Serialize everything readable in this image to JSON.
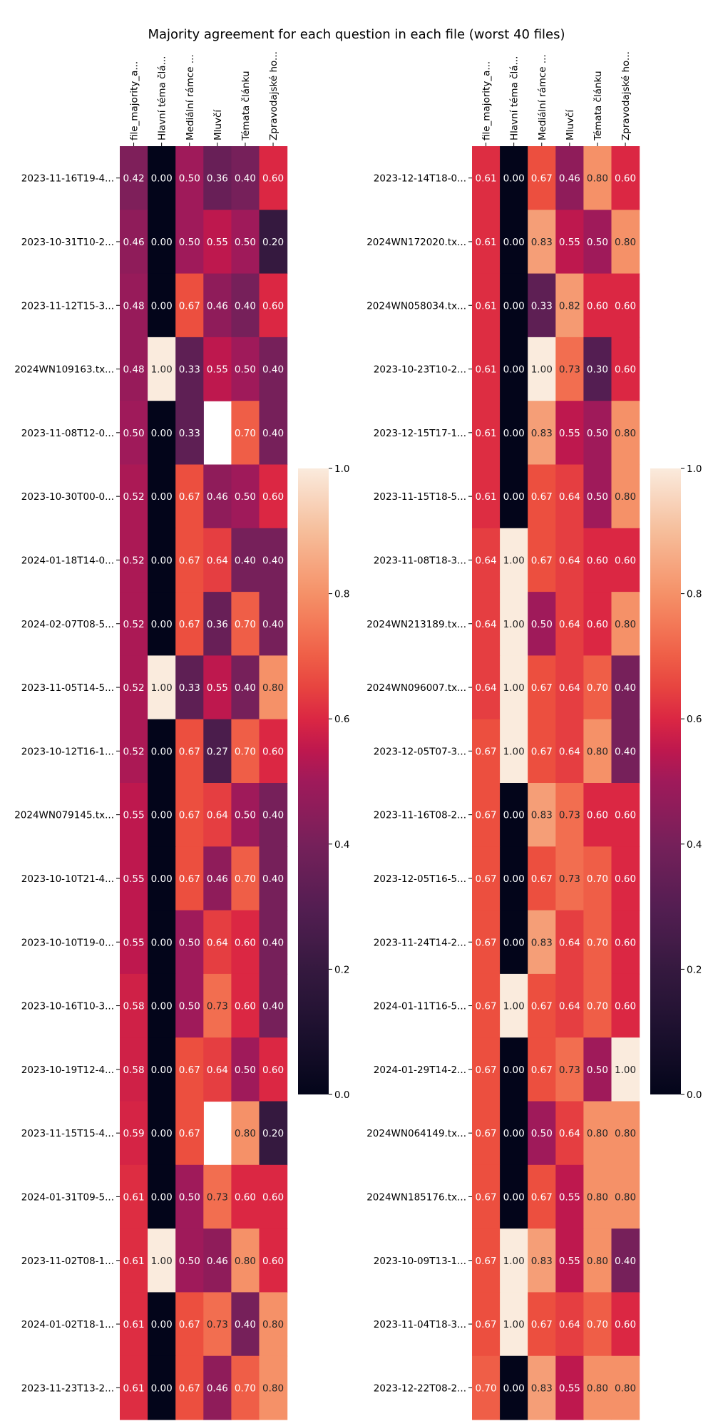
{
  "title": "Majority agreement for each question in each file (worst 40 files)",
  "colorbar_ticks": [
    "0.0",
    "0.2",
    "0.4",
    "0.6",
    "0.8",
    "1.0"
  ],
  "chart_data": [
    {
      "type": "heatmap",
      "columns": [
        "file_majority_a...",
        "Hlavní téma člá...",
        "Mediální rámce ...",
        "Mluvčí",
        "Témata článku",
        "Zpravodajské ho..."
      ],
      "rows": [
        "2023-11-16T19-4...",
        "2023-10-31T10-2...",
        "2023-11-12T15-3...",
        "2024WN109163.tx...",
        "2023-11-08T12-0...",
        "2023-10-30T00-0...",
        "2024-01-18T14-0...",
        "2024-02-07T08-5...",
        "2023-11-05T14-5...",
        "2023-10-12T16-1...",
        "2024WN079145.tx...",
        "2023-10-10T21-4...",
        "2023-10-10T19-0...",
        "2023-10-16T10-3...",
        "2023-10-19T12-4...",
        "2023-11-15T15-4...",
        "2024-01-31T09-5...",
        "2023-11-02T08-1...",
        "2024-01-02T18-1...",
        "2023-11-23T13-2..."
      ],
      "values": [
        [
          0.42,
          0.0,
          0.5,
          0.36,
          0.4,
          0.6
        ],
        [
          0.46,
          0.0,
          0.5,
          0.55,
          0.5,
          0.2
        ],
        [
          0.48,
          0.0,
          0.67,
          0.46,
          0.4,
          0.6
        ],
        [
          0.48,
          1.0,
          0.33,
          0.55,
          0.5,
          0.4
        ],
        [
          0.5,
          0.0,
          0.33,
          null,
          0.7,
          0.4
        ],
        [
          0.52,
          0.0,
          0.67,
          0.46,
          0.5,
          0.6
        ],
        [
          0.52,
          0.0,
          0.67,
          0.64,
          0.4,
          0.4
        ],
        [
          0.52,
          0.0,
          0.67,
          0.36,
          0.7,
          0.4
        ],
        [
          0.52,
          1.0,
          0.33,
          0.55,
          0.4,
          0.8
        ],
        [
          0.52,
          0.0,
          0.67,
          0.27,
          0.7,
          0.6
        ],
        [
          0.55,
          0.0,
          0.67,
          0.64,
          0.5,
          0.4
        ],
        [
          0.55,
          0.0,
          0.67,
          0.46,
          0.7,
          0.4
        ],
        [
          0.55,
          0.0,
          0.5,
          0.64,
          0.6,
          0.4
        ],
        [
          0.58,
          0.0,
          0.5,
          0.73,
          0.6,
          0.4
        ],
        [
          0.58,
          0.0,
          0.67,
          0.64,
          0.5,
          0.6
        ],
        [
          0.59,
          0.0,
          0.67,
          null,
          0.8,
          0.2
        ],
        [
          0.61,
          0.0,
          0.5,
          0.73,
          0.6,
          0.6
        ],
        [
          0.61,
          1.0,
          0.5,
          0.46,
          0.8,
          0.6
        ],
        [
          0.61,
          0.0,
          0.67,
          0.73,
          0.4,
          0.8
        ],
        [
          0.61,
          0.0,
          0.67,
          0.46,
          0.7,
          0.8
        ]
      ],
      "vmin": 0.0,
      "vmax": 1.0,
      "colormap": "rocket"
    },
    {
      "type": "heatmap",
      "columns": [
        "file_majority_a...",
        "Hlavní téma člá...",
        "Mediální rámce ...",
        "Mluvčí",
        "Témata článku",
        "Zpravodajské ho..."
      ],
      "rows": [
        "2023-12-14T18-0...",
        "2024WN172020.tx...",
        "2024WN058034.tx...",
        "2023-10-23T10-2...",
        "2023-12-15T17-1...",
        "2023-11-15T18-5...",
        "2023-11-08T18-3...",
        "2024WN213189.tx...",
        "2024WN096007.tx...",
        "2023-12-05T07-3...",
        "2023-11-16T08-2...",
        "2023-12-05T16-5...",
        "2023-11-24T14-2...",
        "2024-01-11T16-5...",
        "2024-01-29T14-2...",
        "2024WN064149.tx...",
        "2024WN185176.tx...",
        "2023-10-09T13-1...",
        "2023-11-04T18-3...",
        "2023-12-22T08-2..."
      ],
      "values": [
        [
          0.61,
          0.0,
          0.67,
          0.46,
          0.8,
          0.6
        ],
        [
          0.61,
          0.0,
          0.83,
          0.55,
          0.5,
          0.8
        ],
        [
          0.61,
          0.0,
          0.33,
          0.82,
          0.6,
          0.6
        ],
        [
          0.61,
          0.0,
          1.0,
          0.73,
          0.3,
          0.6
        ],
        [
          0.61,
          0.0,
          0.83,
          0.55,
          0.5,
          0.8
        ],
        [
          0.61,
          0.0,
          0.67,
          0.64,
          0.5,
          0.8
        ],
        [
          0.64,
          1.0,
          0.67,
          0.64,
          0.6,
          0.6
        ],
        [
          0.64,
          1.0,
          0.5,
          0.64,
          0.6,
          0.8
        ],
        [
          0.64,
          1.0,
          0.67,
          0.64,
          0.7,
          0.4
        ],
        [
          0.67,
          1.0,
          0.67,
          0.64,
          0.8,
          0.4
        ],
        [
          0.67,
          0.0,
          0.83,
          0.73,
          0.6,
          0.6
        ],
        [
          0.67,
          0.0,
          0.67,
          0.73,
          0.7,
          0.6
        ],
        [
          0.67,
          0.0,
          0.83,
          0.64,
          0.7,
          0.6
        ],
        [
          0.67,
          1.0,
          0.67,
          0.64,
          0.7,
          0.6
        ],
        [
          0.67,
          0.0,
          0.67,
          0.73,
          0.5,
          1.0
        ],
        [
          0.67,
          0.0,
          0.5,
          0.64,
          0.8,
          0.8
        ],
        [
          0.67,
          0.0,
          0.67,
          0.55,
          0.8,
          0.8
        ],
        [
          0.67,
          1.0,
          0.83,
          0.55,
          0.8,
          0.4
        ],
        [
          0.67,
          1.0,
          0.67,
          0.64,
          0.7,
          0.6
        ],
        [
          0.7,
          0.0,
          0.83,
          0.55,
          0.8,
          0.8
        ]
      ],
      "vmin": 0.0,
      "vmax": 1.0,
      "colormap": "rocket"
    }
  ]
}
